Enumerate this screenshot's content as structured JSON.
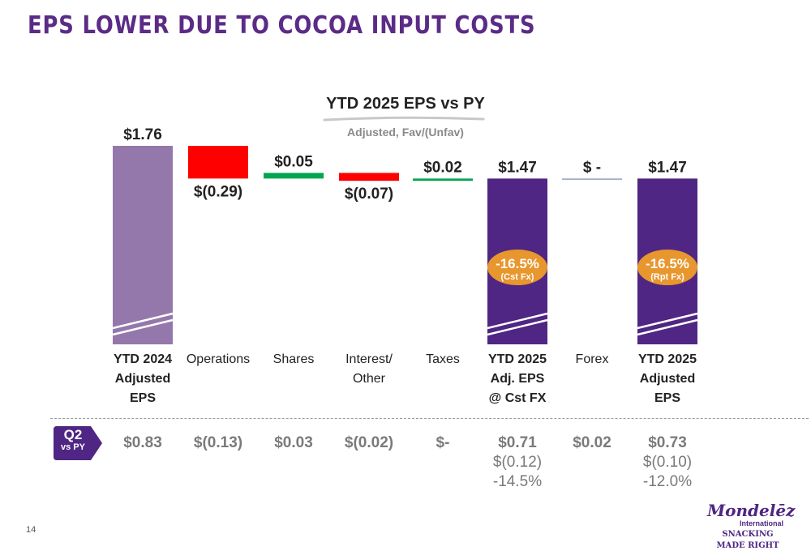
{
  "headline": "EPS LOWER DUE TO COCOA INPUT COSTS",
  "chart_data": {
    "type": "waterfall",
    "title": "YTD 2025 EPS vs PY",
    "subtitle": "Adjusted, Fav/(Unfav)",
    "ylim": [
      0,
      1.76
    ],
    "categories": [
      {
        "lines": [
          "YTD 2024",
          "Adjusted",
          "EPS"
        ],
        "bold": true
      },
      {
        "lines": [
          "Operations"
        ],
        "bold": false
      },
      {
        "lines": [
          "Shares"
        ],
        "bold": false
      },
      {
        "lines": [
          "Interest/",
          "Other"
        ],
        "bold": false
      },
      {
        "lines": [
          "Taxes"
        ],
        "bold": false
      },
      {
        "lines": [
          "YTD 2025",
          "Adj. EPS",
          "@ Cst FX"
        ],
        "bold": true
      },
      {
        "lines": [
          "Forex"
        ],
        "bold": false
      },
      {
        "lines": [
          "YTD 2025",
          "Adjusted",
          "EPS"
        ],
        "bold": true
      }
    ],
    "bars": [
      {
        "kind": "total",
        "value": 1.76,
        "label": "$1.76",
        "color": "#9478ab",
        "label_pos": "top"
      },
      {
        "kind": "delta",
        "value": -0.29,
        "label": "$(0.29)",
        "color": "#ff0000",
        "label_pos": "bottom"
      },
      {
        "kind": "delta",
        "value": 0.05,
        "label": "$0.05",
        "color": "#00a650",
        "label_pos": "top"
      },
      {
        "kind": "delta",
        "value": -0.07,
        "label": "$(0.07)",
        "color": "#ff0000",
        "label_pos": "bottom"
      },
      {
        "kind": "delta",
        "value": 0.02,
        "label": "$0.02",
        "color": "#00a650",
        "label_pos": "top"
      },
      {
        "kind": "total",
        "value": 1.47,
        "label": "$1.47",
        "color": "#4f2683",
        "label_pos": "top",
        "badge": {
          "pct": "-16.5%",
          "note": "(Cst Fx)"
        }
      },
      {
        "kind": "delta",
        "value": 0.0,
        "label": "$ -",
        "color": "#8fa0c0",
        "label_pos": "top"
      },
      {
        "kind": "total",
        "value": 1.47,
        "label": "$1.47",
        "color": "#4f2683",
        "label_pos": "top",
        "badge": {
          "pct": "-16.5%",
          "note": "(Rpt Fx)"
        }
      }
    ],
    "colors": {
      "badge": "#e8962e",
      "total_prior": "#9478ab",
      "total_current": "#4f2683",
      "favorable": "#00a650",
      "unfavorable": "#ff0000"
    }
  },
  "q2": {
    "label": "Q2",
    "sub": "vs PY",
    "badge_color": "#4f2683",
    "values": [
      {
        "main": "$0.83",
        "extra": []
      },
      {
        "main": "$(0.13)",
        "extra": []
      },
      {
        "main": "$0.03",
        "extra": []
      },
      {
        "main": "$(0.02)",
        "extra": []
      },
      {
        "main": "$-",
        "extra": []
      },
      {
        "main": "$0.71",
        "extra": [
          "$(0.12)",
          "-14.5%"
        ]
      },
      {
        "main": "$0.02",
        "extra": []
      },
      {
        "main": "$0.73",
        "extra": [
          "$(0.10)",
          "-12.0%"
        ]
      }
    ]
  },
  "page_number": "14",
  "logo": {
    "name": "Mondelēz",
    "sub": "International",
    "tagline": "SNACKING MADE RIGHT"
  }
}
